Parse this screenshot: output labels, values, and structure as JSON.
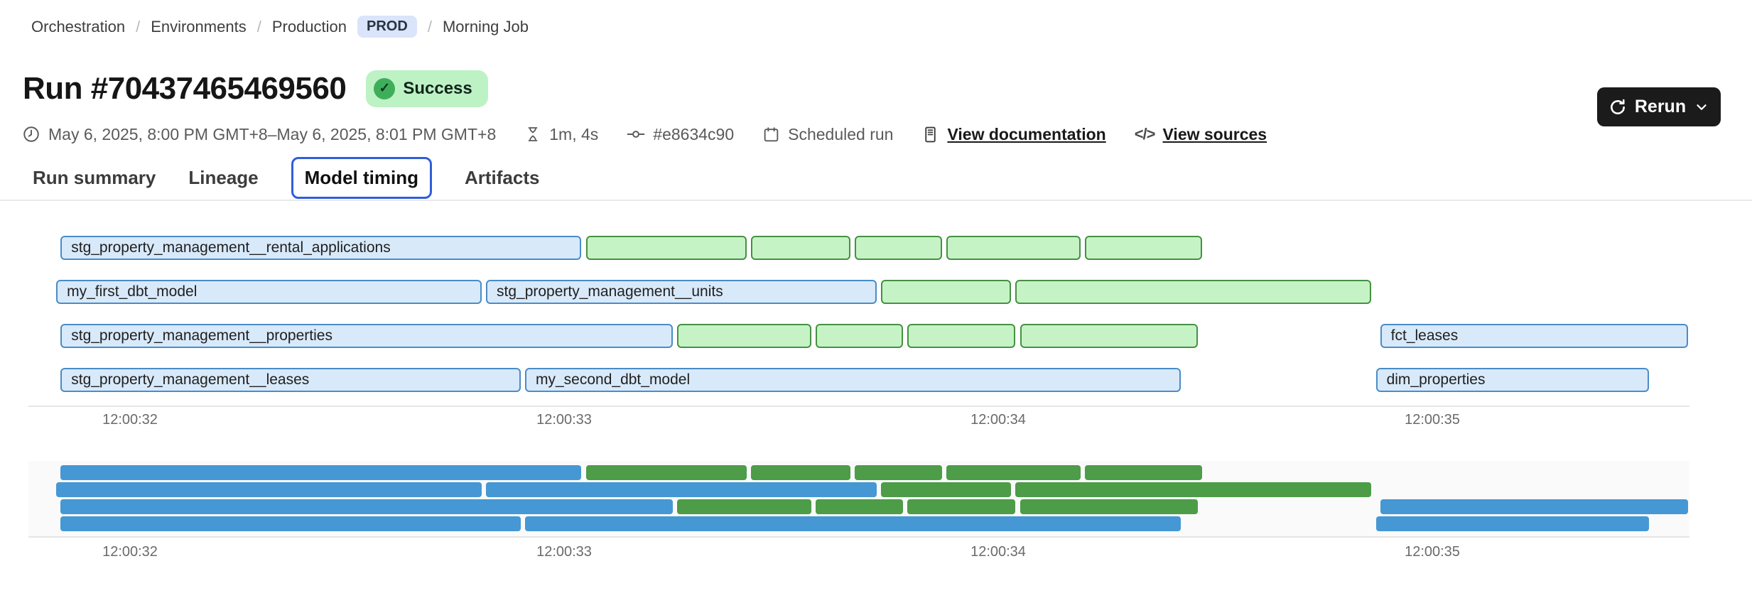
{
  "breadcrumb": {
    "separator": "/",
    "items": [
      "Orchestration",
      "Environments",
      "Production"
    ],
    "env_badge": "PROD",
    "current": "Morning Job"
  },
  "header": {
    "title": "Run #70437465469560",
    "status": "Success",
    "status_check_glyph": "✓"
  },
  "meta": {
    "time_range": "May 6, 2025, 8:00 PM GMT+8–May 6, 2025, 8:01 PM GMT+8",
    "duration": "1m, 4s",
    "commit": "#e8634c90",
    "trigger": "Scheduled run",
    "doc_link": "View documentation",
    "sources_link": "View sources",
    "code_icon_glyph": "</>"
  },
  "actions": {
    "rerun": "Rerun"
  },
  "tabs": [
    {
      "label": "Run summary",
      "selected": false
    },
    {
      "label": "Lineage",
      "selected": false
    },
    {
      "label": "Model timing",
      "selected": true
    },
    {
      "label": "Artifacts",
      "selected": false
    }
  ],
  "colors": {
    "accent": "#2f5fd8",
    "prod_badge_bg": "#dae4fb",
    "success_bg": "#bdf2c4",
    "success_circle": "#3fae5a",
    "rerun_bg": "#1b1b1b",
    "bar_blue_fill": "#d8e9fa",
    "bar_blue_border": "#4a8cc7",
    "bar_green_fill": "#c6f3c5",
    "bar_green_border": "#459143",
    "minimap_blue": "#4598d3",
    "minimap_green": "#4c9c48"
  },
  "chart_data": {
    "type": "gantt",
    "title": "Model timing",
    "axis": {
      "tick_labels": [
        "12:00:32",
        "12:00:33",
        "12:00:34",
        "12:00:35"
      ],
      "tick_seconds": [
        32,
        33,
        34,
        35
      ],
      "unit": "time of day (hh:mm:ss)"
    },
    "rows": [
      {
        "bars": [
          {
            "label": "stg_property_management__rental_applications",
            "color": "blue",
            "t0": 31.84,
            "t1": 33.04
          },
          {
            "label": null,
            "color": "green",
            "t0": 33.05,
            "t1": 33.42
          },
          {
            "label": null,
            "color": "green",
            "t0": 33.43,
            "t1": 33.66
          },
          {
            "label": null,
            "color": "green",
            "t0": 33.67,
            "t1": 33.87
          },
          {
            "label": null,
            "color": "green",
            "t0": 33.88,
            "t1": 34.19
          },
          {
            "label": null,
            "color": "green",
            "t0": 34.2,
            "t1": 34.47
          }
        ]
      },
      {
        "bars": [
          {
            "label": "my_first_dbt_model",
            "color": "blue",
            "t0": 31.83,
            "t1": 32.81
          },
          {
            "label": "stg_property_management__units",
            "color": "blue",
            "t0": 32.82,
            "t1": 33.72
          },
          {
            "label": null,
            "color": "green",
            "t0": 33.73,
            "t1": 34.03
          },
          {
            "label": null,
            "color": "green",
            "t0": 34.04,
            "t1": 34.86
          }
        ]
      },
      {
        "bars": [
          {
            "label": "stg_property_management__properties",
            "color": "blue",
            "t0": 31.84,
            "t1": 33.25
          },
          {
            "label": null,
            "color": "green",
            "t0": 33.26,
            "t1": 33.57
          },
          {
            "label": null,
            "color": "green",
            "t0": 33.58,
            "t1": 33.78
          },
          {
            "label": null,
            "color": "green",
            "t0": 33.79,
            "t1": 34.04
          },
          {
            "label": null,
            "color": "green",
            "t0": 34.05,
            "t1": 34.46
          },
          {
            "label": "fct_leases",
            "color": "blue",
            "t0": 34.88,
            "t1": 35.59
          }
        ]
      },
      {
        "bars": [
          {
            "label": "stg_property_management__leases",
            "color": "blue",
            "t0": 31.84,
            "t1": 32.9
          },
          {
            "label": "my_second_dbt_model",
            "color": "blue",
            "t0": 32.91,
            "t1": 34.42
          },
          {
            "label": "dim_properties",
            "color": "blue",
            "t0": 34.87,
            "t1": 35.5
          }
        ]
      }
    ]
  }
}
